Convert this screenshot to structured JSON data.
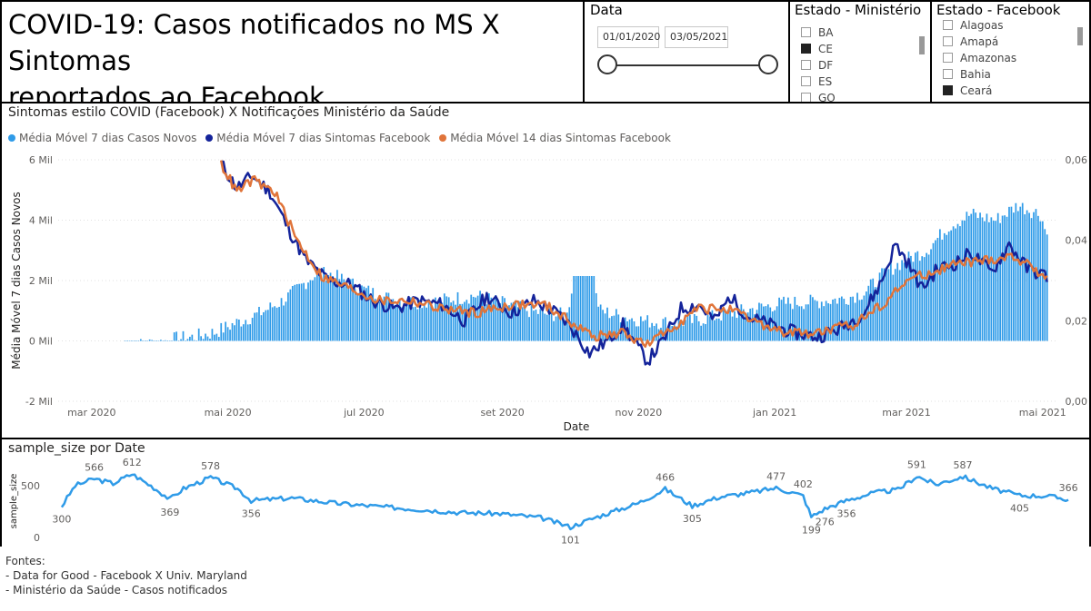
{
  "header": {
    "title_line1": "COVID-19: Casos notificados no MS X Sintomas",
    "title_line2": "reportados ao Facebook"
  },
  "date_filter": {
    "label": "Data",
    "start": "01/01/2020",
    "end": "03/05/2021"
  },
  "slicer_ministerio": {
    "title": "Estado - Ministério",
    "items": [
      {
        "label": "BA",
        "checked": false
      },
      {
        "label": "CE",
        "checked": true
      },
      {
        "label": "DF",
        "checked": false
      },
      {
        "label": "ES",
        "checked": false
      },
      {
        "label": "GO",
        "checked": false
      }
    ]
  },
  "slicer_facebook": {
    "title": "Estado - Facebook",
    "items": [
      {
        "label": "Alagoas",
        "checked": false
      },
      {
        "label": "Amapá",
        "checked": false
      },
      {
        "label": "Amazonas",
        "checked": false
      },
      {
        "label": "Bahia",
        "checked": false
      },
      {
        "label": "Ceará",
        "checked": true
      }
    ]
  },
  "colors": {
    "bars": "#2f9be8",
    "sintomas7": "#14239a",
    "sintomas14": "#e0743a"
  },
  "sources": {
    "line1": "Fontes:",
    "line2": "- Data for Good - Facebook X Univ. Maryland",
    "line3": "- Ministério da Saúde - Casos notificados"
  },
  "chart_data": [
    {
      "type": "bar+line",
      "title": "Sintomas estilo COVID (Facebook) X Notificações Ministério da Saúde",
      "xlabel": "Date",
      "ylabel": "Média Móvel 7 dias Casos Novos",
      "xlim": [
        "2020-02-15",
        "2021-05-08"
      ],
      "ylim": [
        -2000,
        6000
      ],
      "y2lim": [
        0,
        0.06
      ],
      "y_ticks": [
        "-2 Mil",
        "0 Mil",
        "2 Mil",
        "4 Mil",
        "6 Mil"
      ],
      "y2_ticks": [
        "0,00",
        "0,02",
        "0,04",
        "0,06"
      ],
      "x_ticks": [
        "mar 2020",
        "mai 2020",
        "jul 2020",
        "set 2020",
        "nov 2020",
        "jan 2021",
        "mar 2021",
        "mai 2021"
      ],
      "legend": [
        "Média Móvel 7 dias Casos Novos",
        "Média Móvel 7 dias Sintomas Facebook",
        "Média Móvel 14 dias Sintomas Facebook"
      ],
      "legend_position": "top-left",
      "grid": true,
      "bars_series": {
        "name": "Média Móvel 7 dias Casos Novos",
        "axis": "left",
        "points": [
          [
            "2020-03-16",
            0
          ],
          [
            "2020-03-25",
            10
          ],
          [
            "2020-04-05",
            50
          ],
          [
            "2020-04-15",
            120
          ],
          [
            "2020-04-25",
            280
          ],
          [
            "2020-05-05",
            600
          ],
          [
            "2020-05-15",
            900
          ],
          [
            "2020-05-25",
            1300
          ],
          [
            "2020-06-01",
            1700
          ],
          [
            "2020-06-08",
            2150
          ],
          [
            "2020-06-15",
            2250
          ],
          [
            "2020-06-22",
            2000
          ],
          [
            "2020-07-01",
            1700
          ],
          [
            "2020-07-10",
            1450
          ],
          [
            "2020-07-20",
            1300
          ],
          [
            "2020-08-01",
            1300
          ],
          [
            "2020-08-10",
            1400
          ],
          [
            "2020-08-20",
            1500
          ],
          [
            "2020-09-01",
            1250
          ],
          [
            "2020-09-10",
            1050
          ],
          [
            "2020-09-20",
            900
          ],
          [
            "2020-09-30",
            850
          ],
          [
            "2020-10-03",
            2150
          ],
          [
            "2020-10-10",
            2150
          ],
          [
            "2020-10-15",
            1000
          ],
          [
            "2020-10-25",
            800
          ],
          [
            "2020-11-05",
            650
          ],
          [
            "2020-11-15",
            600
          ],
          [
            "2020-11-25",
            650
          ],
          [
            "2020-12-05",
            800
          ],
          [
            "2020-12-15",
            950
          ],
          [
            "2020-12-25",
            1100
          ],
          [
            "2021-01-05",
            1250
          ],
          [
            "2021-01-20",
            1300
          ],
          [
            "2021-02-01",
            1400
          ],
          [
            "2021-02-10",
            1600
          ],
          [
            "2021-02-20",
            2300
          ],
          [
            "2021-03-01",
            2700
          ],
          [
            "2021-03-10",
            3000
          ],
          [
            "2021-03-20",
            3800
          ],
          [
            "2021-03-30",
            4200
          ],
          [
            "2021-04-10",
            4000
          ],
          [
            "2021-04-20",
            4500
          ],
          [
            "2021-04-30",
            4200
          ],
          [
            "2021-05-03",
            3500
          ]
        ]
      },
      "line_series": [
        {
          "name": "Média Móvel 7 dias Sintomas Facebook",
          "axis": "right",
          "points": [
            [
              "2020-04-28",
              0.059
            ],
            [
              "2020-05-05",
              0.053
            ],
            [
              "2020-05-12",
              0.056
            ],
            [
              "2020-05-20",
              0.052
            ],
            [
              "2020-05-28",
              0.043
            ],
            [
              "2020-06-05",
              0.035
            ],
            [
              "2020-06-15",
              0.03
            ],
            [
              "2020-06-25",
              0.029
            ],
            [
              "2020-07-05",
              0.025
            ],
            [
              "2020-07-15",
              0.023
            ],
            [
              "2020-07-25",
              0.025
            ],
            [
              "2020-08-05",
              0.024
            ],
            [
              "2020-08-15",
              0.02
            ],
            [
              "2020-08-25",
              0.026
            ],
            [
              "2020-09-05",
              0.022
            ],
            [
              "2020-09-15",
              0.025
            ],
            [
              "2020-09-25",
              0.022
            ],
            [
              "2020-10-01",
              0.019
            ],
            [
              "2020-10-10",
              0.012
            ],
            [
              "2020-10-18",
              0.015
            ],
            [
              "2020-10-25",
              0.019
            ],
            [
              "2020-10-31",
              0.014
            ],
            [
              "2020-11-05",
              0.01
            ],
            [
              "2020-11-12",
              0.015
            ],
            [
              "2020-11-20",
              0.023
            ],
            [
              "2020-11-28",
              0.024
            ],
            [
              "2020-12-05",
              0.02
            ],
            [
              "2020-12-12",
              0.026
            ],
            [
              "2020-12-20",
              0.021
            ],
            [
              "2020-12-30",
              0.019
            ],
            [
              "2021-01-10",
              0.017
            ],
            [
              "2021-01-20",
              0.016
            ],
            [
              "2021-01-30",
              0.018
            ],
            [
              "2021-02-10",
              0.022
            ],
            [
              "2021-02-18",
              0.03
            ],
            [
              "2021-02-24",
              0.039
            ],
            [
              "2021-03-01",
              0.035
            ],
            [
              "2021-03-08",
              0.028
            ],
            [
              "2021-03-15",
              0.033
            ],
            [
              "2021-03-22",
              0.034
            ],
            [
              "2021-03-30",
              0.037
            ],
            [
              "2021-04-08",
              0.032
            ],
            [
              "2021-04-16",
              0.039
            ],
            [
              "2021-04-24",
              0.033
            ],
            [
              "2021-05-03",
              0.031
            ]
          ]
        },
        {
          "name": "Média Móvel 14 dias Sintomas Facebook",
          "axis": "right",
          "points": [
            [
              "2020-04-28",
              0.059
            ],
            [
              "2020-05-05",
              0.052
            ],
            [
              "2020-05-12",
              0.055
            ],
            [
              "2020-05-22",
              0.052
            ],
            [
              "2020-06-01",
              0.04
            ],
            [
              "2020-06-12",
              0.031
            ],
            [
              "2020-06-25",
              0.028
            ],
            [
              "2020-07-08",
              0.025
            ],
            [
              "2020-07-22",
              0.025
            ],
            [
              "2020-08-05",
              0.023
            ],
            [
              "2020-08-20",
              0.022
            ],
            [
              "2020-09-05",
              0.024
            ],
            [
              "2020-09-20",
              0.024
            ],
            [
              "2020-10-01",
              0.02
            ],
            [
              "2020-10-12",
              0.016
            ],
            [
              "2020-10-25",
              0.017
            ],
            [
              "2020-11-05",
              0.014
            ],
            [
              "2020-11-15",
              0.018
            ],
            [
              "2020-11-28",
              0.023
            ],
            [
              "2020-12-10",
              0.023
            ],
            [
              "2020-12-22",
              0.02
            ],
            [
              "2021-01-05",
              0.017
            ],
            [
              "2021-01-20",
              0.017
            ],
            [
              "2021-02-05",
              0.019
            ],
            [
              "2021-02-20",
              0.025
            ],
            [
              "2021-03-01",
              0.03
            ],
            [
              "2021-03-12",
              0.032
            ],
            [
              "2021-03-22",
              0.034
            ],
            [
              "2021-04-05",
              0.035
            ],
            [
              "2021-04-18",
              0.036
            ],
            [
              "2021-05-03",
              0.031
            ]
          ]
        }
      ]
    },
    {
      "type": "line",
      "title": "sample_size por Date",
      "ylabel": "sample_size",
      "xlim": [
        "2020-04-20",
        "2021-05-08"
      ],
      "ylim": [
        0,
        700
      ],
      "y_ticks": [
        "0",
        "500"
      ],
      "series": [
        {
          "points": [
            [
              "2020-04-26",
              300
            ],
            [
              "2020-05-01",
              500
            ],
            [
              "2020-05-08",
              566
            ],
            [
              "2020-05-15",
              520
            ],
            [
              "2020-05-22",
              612
            ],
            [
              "2020-05-30",
              480
            ],
            [
              "2020-06-05",
              369
            ],
            [
              "2020-06-10",
              470
            ],
            [
              "2020-06-20",
              578
            ],
            [
              "2020-06-30",
              470
            ],
            [
              "2020-07-05",
              356
            ],
            [
              "2020-07-20",
              380
            ],
            [
              "2020-08-05",
              330
            ],
            [
              "2020-08-20",
              300
            ],
            [
              "2020-09-05",
              270
            ],
            [
              "2020-09-20",
              240
            ],
            [
              "2020-10-05",
              230
            ],
            [
              "2020-10-20",
              190
            ],
            [
              "2020-10-31",
              101
            ],
            [
              "2020-11-10",
              200
            ],
            [
              "2020-11-25",
              330
            ],
            [
              "2020-12-05",
              466
            ],
            [
              "2020-12-15",
              305
            ],
            [
              "2020-12-25",
              390
            ],
            [
              "2021-01-05",
              430
            ],
            [
              "2021-01-15",
              477
            ],
            [
              "2021-01-25",
              402
            ],
            [
              "2021-01-28",
              199
            ],
            [
              "2021-02-02",
              276
            ],
            [
              "2021-02-10",
              356
            ],
            [
              "2021-02-20",
              430
            ],
            [
              "2021-03-01",
              460
            ],
            [
              "2021-03-08",
              591
            ],
            [
              "2021-03-15",
              510
            ],
            [
              "2021-03-25",
              587
            ],
            [
              "2021-04-05",
              470
            ],
            [
              "2021-04-15",
              405
            ],
            [
              "2021-04-25",
              400
            ],
            [
              "2021-05-03",
              366
            ]
          ]
        }
      ],
      "data_labels": [
        {
          "x": "2020-04-26",
          "y": 300,
          "label": "300"
        },
        {
          "x": "2020-05-08",
          "y": 566,
          "label": "566"
        },
        {
          "x": "2020-05-22",
          "y": 612,
          "label": "612"
        },
        {
          "x": "2020-06-05",
          "y": 369,
          "label": "369"
        },
        {
          "x": "2020-06-20",
          "y": 578,
          "label": "578"
        },
        {
          "x": "2020-07-05",
          "y": 356,
          "label": "356"
        },
        {
          "x": "2020-10-31",
          "y": 101,
          "label": "101"
        },
        {
          "x": "2020-12-05",
          "y": 466,
          "label": "466"
        },
        {
          "x": "2020-12-15",
          "y": 305,
          "label": "305"
        },
        {
          "x": "2021-01-15",
          "y": 477,
          "label": "477"
        },
        {
          "x": "2021-01-25",
          "y": 402,
          "label": "402"
        },
        {
          "x": "2021-01-28",
          "y": 199,
          "label": "199"
        },
        {
          "x": "2021-02-02",
          "y": 276,
          "label": "276"
        },
        {
          "x": "2021-02-10",
          "y": 356,
          "label": "356"
        },
        {
          "x": "2021-03-08",
          "y": 591,
          "label": "591"
        },
        {
          "x": "2021-03-25",
          "y": 587,
          "label": "587"
        },
        {
          "x": "2021-04-15",
          "y": 405,
          "label": "405"
        },
        {
          "x": "2021-05-03",
          "y": 366,
          "label": "366"
        }
      ]
    }
  ]
}
